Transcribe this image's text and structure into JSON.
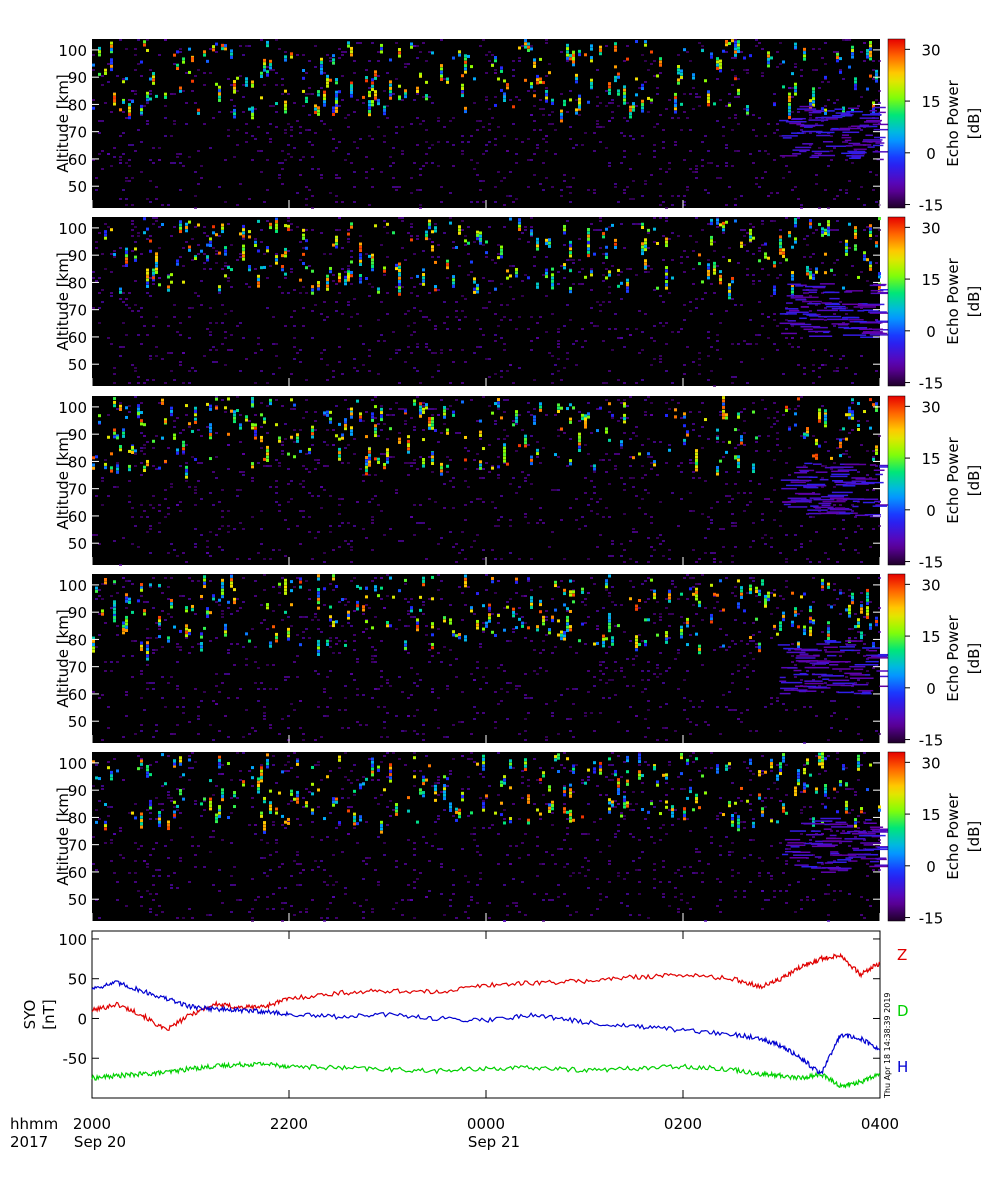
{
  "colors": {
    "z_line": "#e00000",
    "d_line": "#00d000",
    "h_line": "#0000d0",
    "background": "#000000"
  },
  "timestamp": "Thu Apr 18 14:38:39 2019",
  "time_axis": {
    "label": "hhmm",
    "year": "2017",
    "ticks": [
      {
        "value": "2000",
        "date": "Sep 20"
      },
      {
        "value": "2200",
        "date": ""
      },
      {
        "value": "0000",
        "date": "Sep 21"
      },
      {
        "value": "0200",
        "date": ""
      },
      {
        "value": "0400",
        "date": ""
      }
    ]
  },
  "chart_data": [
    {
      "type": "heatmap",
      "panel": 1,
      "ylabel": "Altitude [km]",
      "ylim": [
        42,
        104
      ],
      "yticks": [
        "40",
        "50",
        "60",
        "70",
        "80",
        "90",
        "100"
      ],
      "xlim": [
        "2017-09-20 20:00",
        "2017-09-21 04:00"
      ],
      "colorbar": {
        "label": "Echo Power [dB]",
        "range": [
          -16,
          33
        ],
        "ticks": [
          "-15",
          "0",
          "15",
          "30"
        ]
      },
      "seed": 11
    },
    {
      "type": "heatmap",
      "panel": 2,
      "ylabel": "Altitude [km]",
      "ylim": [
        42,
        104
      ],
      "yticks": [
        "40",
        "50",
        "60",
        "70",
        "80",
        "90",
        "100"
      ],
      "xlim": [
        "2017-09-20 20:00",
        "2017-09-21 04:00"
      ],
      "colorbar": {
        "label": "Echo Power [dB]",
        "range": [
          -16,
          33
        ],
        "ticks": [
          "-15",
          "0",
          "15",
          "30"
        ]
      },
      "seed": 23
    },
    {
      "type": "heatmap",
      "panel": 3,
      "ylabel": "Altitude [km]",
      "ylim": [
        42,
        104
      ],
      "yticks": [
        "40",
        "50",
        "60",
        "70",
        "80",
        "90",
        "100"
      ],
      "xlim": [
        "2017-09-20 20:00",
        "2017-09-21 04:00"
      ],
      "colorbar": {
        "label": "Echo Power [dB]",
        "range": [
          -16,
          33
        ],
        "ticks": [
          "-15",
          "0",
          "15",
          "30"
        ]
      },
      "seed": 37
    },
    {
      "type": "heatmap",
      "panel": 4,
      "ylabel": "Altitude [km]",
      "ylim": [
        42,
        104
      ],
      "yticks": [
        "40",
        "50",
        "60",
        "70",
        "80",
        "90",
        "100"
      ],
      "xlim": [
        "2017-09-20 20:00",
        "2017-09-21 04:00"
      ],
      "colorbar": {
        "label": "Echo Power [dB]",
        "range": [
          -16,
          33
        ],
        "ticks": [
          "-15",
          "0",
          "15",
          "30"
        ]
      },
      "seed": 53
    },
    {
      "type": "heatmap",
      "panel": 5,
      "ylabel": "Altitude [km]",
      "ylim": [
        42,
        104
      ],
      "yticks": [
        "40",
        "50",
        "60",
        "70",
        "80",
        "90",
        "100"
      ],
      "xlim": [
        "2017-09-20 20:00",
        "2017-09-21 04:00"
      ],
      "colorbar": {
        "label": "Echo Power [dB]",
        "range": [
          -16,
          33
        ],
        "ticks": [
          "-15",
          "0",
          "15",
          "30"
        ]
      },
      "seed": 71
    },
    {
      "type": "line",
      "ylabel": "SYO [nT]",
      "ylim": [
        -100,
        110
      ],
      "yticks": [
        "-50",
        "0",
        "50",
        "100"
      ],
      "xlim": [
        "2017-09-20 20:00",
        "2017-09-21 04:00"
      ],
      "x_hours": [
        0,
        0.25,
        0.5,
        0.75,
        1,
        1.25,
        1.5,
        1.75,
        2,
        2.5,
        3,
        3.5,
        4,
        4.5,
        5,
        5.5,
        6,
        6.5,
        6.8,
        7,
        7.2,
        7.4,
        7.6,
        7.8,
        8
      ],
      "series": [
        {
          "name": "Z",
          "values": [
            10,
            18,
            5,
            -15,
            5,
            18,
            14,
            15,
            25,
            32,
            35,
            33,
            42,
            45,
            47,
            52,
            55,
            50,
            40,
            50,
            65,
            75,
            80,
            55,
            70
          ]
        },
        {
          "name": "D",
          "values": [
            -75,
            -72,
            -70,
            -68,
            -63,
            -60,
            -58,
            -57,
            -60,
            -62,
            -64,
            -66,
            -63,
            -62,
            -65,
            -63,
            -60,
            -64,
            -70,
            -72,
            -75,
            -70,
            -85,
            -80,
            -70
          ]
        },
        {
          "name": "H",
          "values": [
            38,
            45,
            35,
            25,
            15,
            12,
            10,
            9,
            5,
            2,
            5,
            0,
            -2,
            5,
            -5,
            -10,
            -15,
            -20,
            -25,
            -35,
            -50,
            -70,
            -20,
            -25,
            -40
          ]
        }
      ]
    }
  ]
}
